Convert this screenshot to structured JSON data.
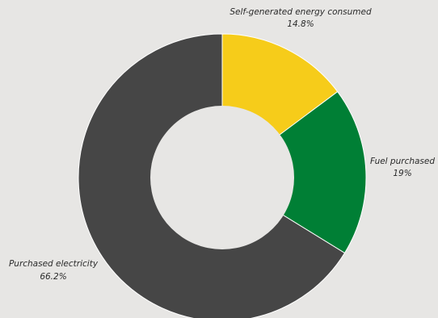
{
  "chart_data": {
    "type": "pie",
    "donut": true,
    "slices": [
      {
        "label": "Self-generated energy consumed",
        "value": 14.8,
        "value_label": "14.8%",
        "color": "#f6cc1a"
      },
      {
        "label": "Fuel purchased",
        "value": 19,
        "value_label": "19%",
        "color": "#007f35"
      },
      {
        "label": "Purchased electricity",
        "value": 66.2,
        "value_label": "66.2%",
        "color": "#464646"
      }
    ]
  }
}
